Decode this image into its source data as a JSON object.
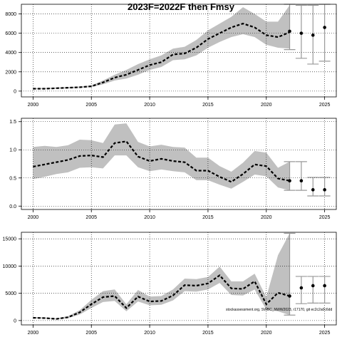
{
  "title": "2023F=2022F then Fmsy",
  "watermark": "stockassessment.org, SWBC_NWW2023, r17170, git ec2c2a0c6dd",
  "colors": {
    "band": "#c0c0c0",
    "line": "#000000",
    "proj": "#999999",
    "grid": "#000000"
  },
  "chart_data": [
    {
      "type": "line",
      "xlim": [
        1999,
        2026
      ],
      "ylim": [
        -600,
        9000
      ],
      "xticks": [
        2000,
        2005,
        2010,
        2015,
        2020,
        2025
      ],
      "yticks": [
        0,
        2000,
        4000,
        6000,
        8000
      ],
      "ytick_labels": [
        "0",
        "2000",
        "4000",
        "6000",
        "8000"
      ],
      "x": [
        2000,
        2001,
        2002,
        2003,
        2004,
        2005,
        2006,
        2007,
        2008,
        2009,
        2010,
        2011,
        2012,
        2013,
        2014,
        2015,
        2016,
        2017,
        2018,
        2019,
        2020,
        2021,
        2022
      ],
      "estimate": [
        250,
        250,
        300,
        350,
        400,
        500,
        900,
        1400,
        1700,
        2200,
        2700,
        3000,
        3800,
        3900,
        4500,
        5400,
        6000,
        6600,
        7000,
        6600,
        5800,
        5600,
        6100
      ],
      "lower": [
        200,
        200,
        250,
        280,
        330,
        420,
        700,
        1100,
        1300,
        1700,
        2200,
        2500,
        3200,
        3300,
        3700,
        4500,
        5100,
        5600,
        5900,
        5600,
        4800,
        4500,
        4400
      ],
      "upper": [
        300,
        320,
        370,
        420,
        480,
        590,
        1100,
        1700,
        2200,
        2800,
        3300,
        3700,
        4400,
        4600,
        5300,
        6300,
        7000,
        7700,
        8700,
        8000,
        7200,
        7200,
        8900
      ],
      "projection": {
        "x": [
          2022,
          2023,
          2024,
          2025
        ],
        "estimate": [
          6200,
          6000,
          5800,
          6600
        ],
        "lower": [
          4300,
          3400,
          2800,
          3100
        ],
        "upper": [
          9000,
          8900,
          8900,
          9000
        ]
      }
    },
    {
      "type": "line",
      "xlim": [
        1999,
        2026
      ],
      "ylim": [
        -0.06,
        1.56
      ],
      "xticks": [
        2000,
        2005,
        2010,
        2015,
        2020,
        2025
      ],
      "yticks": [
        0,
        0.5,
        1.0,
        1.5
      ],
      "ytick_labels": [
        "0.0",
        "0.5",
        "1.0",
        "1.5"
      ],
      "x": [
        2000,
        2001,
        2002,
        2003,
        2004,
        2005,
        2006,
        2007,
        2008,
        2009,
        2010,
        2011,
        2012,
        2013,
        2014,
        2015,
        2016,
        2017,
        2018,
        2019,
        2020,
        2021,
        2022
      ],
      "estimate": [
        0.7,
        0.74,
        0.78,
        0.82,
        0.89,
        0.9,
        0.87,
        1.12,
        1.15,
        0.88,
        0.8,
        0.84,
        0.8,
        0.78,
        0.63,
        0.63,
        0.52,
        0.43,
        0.57,
        0.74,
        0.71,
        0.49,
        0.45
      ],
      "lower": [
        0.48,
        0.52,
        0.57,
        0.6,
        0.68,
        0.69,
        0.67,
        0.9,
        0.9,
        0.69,
        0.62,
        0.65,
        0.62,
        0.6,
        0.46,
        0.46,
        0.38,
        0.31,
        0.43,
        0.56,
        0.53,
        0.33,
        0.28
      ],
      "upper": [
        1.05,
        1.07,
        1.05,
        1.08,
        1.18,
        1.17,
        1.12,
        1.45,
        1.47,
        1.14,
        1.06,
        1.09,
        1.05,
        1.04,
        0.86,
        0.86,
        0.71,
        0.61,
        0.77,
        0.98,
        0.95,
        0.68,
        0.79
      ],
      "projection": {
        "x": [
          2022,
          2023,
          2024,
          2025
        ],
        "estimate": [
          0.45,
          0.45,
          0.29,
          0.29
        ],
        "lower": [
          0.28,
          0.28,
          0.18,
          0.18
        ],
        "upper": [
          0.79,
          0.79,
          0.51,
          0.51
        ]
      }
    },
    {
      "type": "line",
      "xlim": [
        1999,
        2026
      ],
      "ylim": [
        -800,
        16200
      ],
      "xticks": [
        2000,
        2005,
        2010,
        2015,
        2020,
        2025
      ],
      "yticks": [
        0,
        5000,
        10000,
        15000
      ],
      "ytick_labels": [
        "0",
        "5000",
        "10000",
        "15000"
      ],
      "x": [
        2000,
        2001,
        2002,
        2003,
        2004,
        2005,
        2006,
        2007,
        2008,
        2009,
        2010,
        2011,
        2012,
        2013,
        2014,
        2015,
        2016,
        2017,
        2018,
        2019,
        2020,
        2021,
        2022
      ],
      "estimate": [
        500,
        450,
        300,
        600,
        1500,
        3000,
        4300,
        4500,
        2300,
        4400,
        3500,
        3600,
        4600,
        6500,
        6400,
        6800,
        8300,
        5900,
        5800,
        7200,
        3000,
        5100,
        4500
      ],
      "lower": [
        400,
        350,
        220,
        450,
        1100,
        2300,
        3400,
        3600,
        1700,
        3500,
        2800,
        2900,
        3700,
        5400,
        5300,
        5700,
        6900,
        4700,
        4600,
        5700,
        2000,
        1700,
        1000
      ],
      "upper": [
        650,
        580,
        400,
        800,
        1900,
        3800,
        5400,
        5700,
        3000,
        5600,
        4400,
        4500,
        5700,
        7700,
        7600,
        8000,
        9900,
        7200,
        7200,
        8600,
        4300,
        12000,
        16000
      ],
      "projection": {
        "x": [
          2022,
          2023,
          2024,
          2025
        ],
        "estimate": [
          4500,
          6000,
          6400,
          6400
        ],
        "lower": [
          1000,
          3100,
          3200,
          3200
        ],
        "upper": [
          16000,
          8100,
          8100,
          8100
        ]
      }
    }
  ]
}
